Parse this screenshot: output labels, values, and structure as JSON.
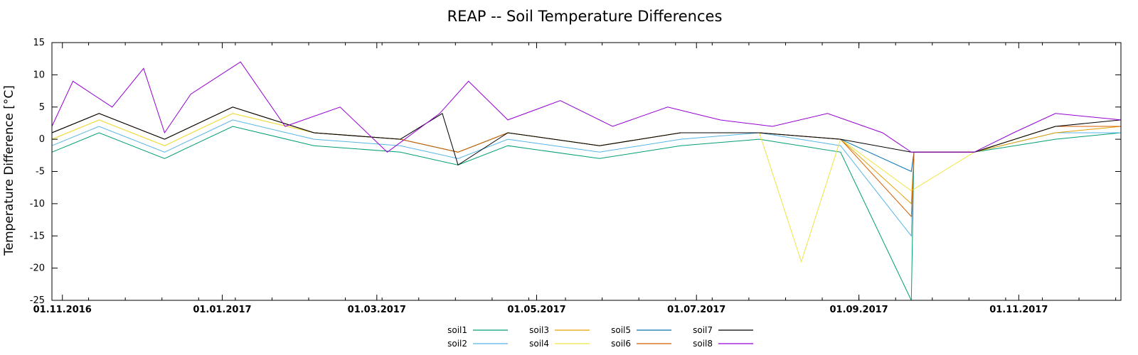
{
  "chart_data": {
    "type": "line",
    "title": "REAP -- Soil Temperature Differences",
    "ylabel": "Temperature Difference [°C]",
    "xlabel": "",
    "ylim": [
      -25,
      15
    ],
    "xlim": [
      "2016-10-28",
      "2017-12-10"
    ],
    "y_ticks": [
      15,
      10,
      5,
      0,
      -5,
      -10,
      -15,
      -20,
      -25
    ],
    "x_ticks": [
      {
        "date": "2016-11-01",
        "label": "01.11.2016"
      },
      {
        "date": "2017-01-01",
        "label": "01.01.2017"
      },
      {
        "date": "2017-03-01",
        "label": "01.03.2017"
      },
      {
        "date": "2017-05-01",
        "label": "01.05.2017"
      },
      {
        "date": "2017-07-01",
        "label": "01.07.2017"
      },
      {
        "date": "2017-09-01",
        "label": "01.09.2017"
      },
      {
        "date": "2017-11-01",
        "label": "01.11.2017"
      }
    ],
    "grid": false,
    "legend_position": "bottom-center",
    "series": [
      {
        "name": "soil1",
        "color": "#009e73",
        "x": [
          "2016-10-28",
          "2016-11-15",
          "2016-12-10",
          "2017-01-05",
          "2017-02-05",
          "2017-03-10",
          "2017-04-01",
          "2017-04-20",
          "2017-05-25",
          "2017-06-25",
          "2017-07-25",
          "2017-08-25",
          "2017-09-21",
          "2017-09-22",
          "2017-10-15",
          "2017-11-15",
          "2017-12-10"
        ],
        "values": [
          -2,
          1,
          -3,
          2,
          -1,
          -2,
          -4,
          -1,
          -3,
          -1,
          0,
          -2,
          -25,
          -2,
          -2,
          0,
          1
        ]
      },
      {
        "name": "soil2",
        "color": "#56b4e9",
        "x": [
          "2016-10-28",
          "2016-11-15",
          "2016-12-10",
          "2017-01-05",
          "2017-02-05",
          "2017-03-10",
          "2017-04-01",
          "2017-04-20",
          "2017-05-25",
          "2017-06-25",
          "2017-07-25",
          "2017-08-25",
          "2017-09-21",
          "2017-09-22",
          "2017-10-15",
          "2017-11-15",
          "2017-12-10"
        ],
        "values": [
          -1,
          2,
          -2,
          3,
          0,
          -1,
          -3,
          0,
          -2,
          0,
          1,
          -1,
          -15,
          -2,
          -2,
          1,
          1
        ]
      },
      {
        "name": "soil3",
        "color": "#e69f00",
        "x": [
          "2016-10-28",
          "2016-11-15",
          "2016-12-10",
          "2017-01-05",
          "2017-02-05",
          "2017-03-10",
          "2017-04-01",
          "2017-04-20",
          "2017-05-25",
          "2017-06-25",
          "2017-07-25",
          "2017-08-25",
          "2017-09-21",
          "2017-09-22",
          "2017-10-15",
          "2017-11-15",
          "2017-12-10"
        ],
        "values": [
          0,
          3,
          -1,
          4,
          1,
          0,
          -2,
          1,
          -1,
          1,
          1,
          0,
          -10,
          -2,
          -2,
          1,
          2
        ]
      },
      {
        "name": "soil4",
        "color": "#f0e442",
        "x": [
          "2016-10-28",
          "2016-11-15",
          "2016-12-10",
          "2017-01-05",
          "2017-02-05",
          "2017-03-10",
          "2017-04-01",
          "2017-04-20",
          "2017-05-25",
          "2017-06-25",
          "2017-07-25",
          "2017-08-10",
          "2017-08-25",
          "2017-09-21",
          "2017-10-15",
          "2017-11-15",
          "2017-12-10"
        ],
        "values": [
          0,
          3,
          -1,
          4,
          1,
          0,
          -2,
          1,
          -1,
          1,
          1,
          -19,
          0,
          -8,
          -2,
          2,
          2
        ]
      },
      {
        "name": "soil5",
        "color": "#0072b2",
        "x": [
          "2016-10-28",
          "2016-11-15",
          "2016-12-10",
          "2017-01-05",
          "2017-02-05",
          "2017-03-10",
          "2017-04-01",
          "2017-04-20",
          "2017-05-25",
          "2017-06-25",
          "2017-07-25",
          "2017-08-25",
          "2017-09-21",
          "2017-09-22",
          "2017-10-15",
          "2017-11-15",
          "2017-12-10"
        ],
        "values": [
          1,
          4,
          0,
          5,
          1,
          0,
          -2,
          1,
          -1,
          1,
          1,
          0,
          -5,
          -2,
          -2,
          2,
          2
        ]
      },
      {
        "name": "soil6",
        "color": "#d55e00",
        "x": [
          "2016-10-28",
          "2016-11-15",
          "2016-12-10",
          "2017-01-05",
          "2017-02-05",
          "2017-03-10",
          "2017-04-01",
          "2017-04-20",
          "2017-05-25",
          "2017-06-25",
          "2017-07-25",
          "2017-08-25",
          "2017-09-21",
          "2017-09-22",
          "2017-10-15",
          "2017-11-15",
          "2017-12-10"
        ],
        "values": [
          1,
          4,
          0,
          5,
          1,
          0,
          -2,
          1,
          -1,
          1,
          1,
          0,
          -12,
          -2,
          -2,
          2,
          2
        ]
      },
      {
        "name": "soil7",
        "color": "#000000",
        "x": [
          "2016-10-28",
          "2016-11-15",
          "2016-12-10",
          "2017-01-05",
          "2017-02-05",
          "2017-03-10",
          "2017-03-26",
          "2017-04-01",
          "2017-04-20",
          "2017-05-25",
          "2017-06-25",
          "2017-07-25",
          "2017-08-25",
          "2017-09-21",
          "2017-09-22",
          "2017-10-15",
          "2017-11-15",
          "2017-12-10"
        ],
        "values": [
          1,
          4,
          0,
          5,
          1,
          0,
          4,
          -4,
          1,
          -1,
          1,
          1,
          0,
          -2,
          -2,
          -2,
          2,
          3
        ]
      },
      {
        "name": "soil8",
        "color": "#9400d3",
        "x": [
          "2016-10-28",
          "2016-11-05",
          "2016-11-20",
          "2016-12-02",
          "2016-12-10",
          "2016-12-20",
          "2017-01-08",
          "2017-01-25",
          "2017-02-15",
          "2017-03-05",
          "2017-03-25",
          "2017-04-05",
          "2017-04-20",
          "2017-05-10",
          "2017-05-30",
          "2017-06-20",
          "2017-07-10",
          "2017-07-30",
          "2017-08-20",
          "2017-09-10",
          "2017-09-21",
          "2017-10-15",
          "2017-10-30",
          "2017-11-15",
          "2017-12-10"
        ],
        "values": [
          2,
          9,
          5,
          11,
          1,
          7,
          12,
          2,
          5,
          -2,
          4,
          9,
          3,
          6,
          2,
          5,
          3,
          2,
          4,
          1,
          -2,
          -2,
          1,
          4,
          3
        ]
      }
    ]
  }
}
